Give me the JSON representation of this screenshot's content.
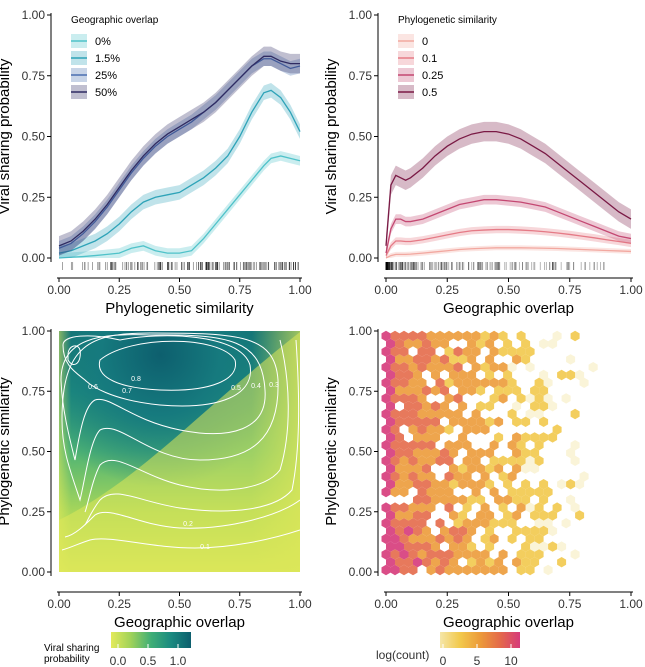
{
  "chart_data": [
    {
      "type": "line",
      "panel": "top-left",
      "xlabel": "Phylogenetic similarity",
      "ylabel": "Viral sharing probability",
      "xlim": [
        0,
        1
      ],
      "ylim": [
        0,
        1
      ],
      "xticks": [
        "0.00",
        "0.25",
        "0.50",
        "0.75",
        "1.00"
      ],
      "yticks": [
        "0.00",
        "0.25",
        "0.50",
        "0.75",
        "1.00"
      ],
      "legend_title": "Geographic overlap",
      "legend_position": "top-left",
      "rug": true,
      "x": [
        0,
        0.05,
        0.1,
        0.15,
        0.2,
        0.25,
        0.3,
        0.35,
        0.4,
        0.45,
        0.5,
        0.55,
        0.6,
        0.65,
        0.7,
        0.75,
        0.8,
        0.85,
        0.88,
        0.92,
        0.96,
        1.0
      ],
      "series": [
        {
          "name": "0%",
          "color": "#4fc2c9",
          "band": 0.02,
          "values": [
            0.0,
            0.003,
            0.006,
            0.01,
            0.015,
            0.02,
            0.04,
            0.05,
            0.03,
            0.02,
            0.02,
            0.03,
            0.08,
            0.14,
            0.2,
            0.26,
            0.32,
            0.38,
            0.41,
            0.42,
            0.41,
            0.4
          ]
        },
        {
          "name": "1.5%",
          "color": "#2ea3b8",
          "band": 0.03,
          "values": [
            0.02,
            0.03,
            0.05,
            0.07,
            0.1,
            0.14,
            0.19,
            0.23,
            0.25,
            0.26,
            0.27,
            0.3,
            0.33,
            0.37,
            0.42,
            0.5,
            0.6,
            0.68,
            0.69,
            0.66,
            0.6,
            0.52
          ]
        },
        {
          "name": "25%",
          "color": "#4a6fb0",
          "band": 0.03,
          "values": [
            0.04,
            0.06,
            0.1,
            0.15,
            0.21,
            0.28,
            0.35,
            0.41,
            0.46,
            0.5,
            0.53,
            0.56,
            0.6,
            0.64,
            0.69,
            0.74,
            0.79,
            0.82,
            0.82,
            0.8,
            0.78,
            0.79
          ]
        },
        {
          "name": "50%",
          "color": "#2f2b62",
          "band": 0.04,
          "values": [
            0.05,
            0.07,
            0.11,
            0.16,
            0.22,
            0.29,
            0.36,
            0.42,
            0.47,
            0.51,
            0.54,
            0.57,
            0.6,
            0.64,
            0.69,
            0.74,
            0.79,
            0.83,
            0.83,
            0.81,
            0.8,
            0.8
          ]
        }
      ]
    },
    {
      "type": "line",
      "panel": "top-right",
      "xlabel": "Geographic overlap",
      "ylabel": "Viral sharing probability",
      "xlim": [
        0,
        1
      ],
      "ylim": [
        0,
        1
      ],
      "xticks": [
        "0.00",
        "0.25",
        "0.50",
        "0.75",
        "1.00"
      ],
      "yticks": [
        "0.00",
        "0.25",
        "0.50",
        "0.75",
        "1.00"
      ],
      "legend_title": "Phylogenetic similarity",
      "legend_position": "top-left",
      "rug": true,
      "x": [
        0,
        0.02,
        0.04,
        0.06,
        0.08,
        0.1,
        0.15,
        0.2,
        0.25,
        0.3,
        0.35,
        0.4,
        0.45,
        0.5,
        0.55,
        0.6,
        0.65,
        0.7,
        0.75,
        0.8,
        0.85,
        0.9,
        0.95,
        1.0
      ],
      "series": [
        {
          "name": "0",
          "color": "#f2a8a0",
          "band": 0.01,
          "values": [
            0.0,
            0.01,
            0.015,
            0.015,
            0.015,
            0.016,
            0.02,
            0.025,
            0.03,
            0.035,
            0.038,
            0.04,
            0.042,
            0.042,
            0.042,
            0.041,
            0.04,
            0.039,
            0.037,
            0.035,
            0.033,
            0.031,
            0.029,
            0.027
          ]
        },
        {
          "name": "0.1",
          "color": "#e57a86",
          "band": 0.015,
          "values": [
            0.01,
            0.05,
            0.07,
            0.07,
            0.068,
            0.068,
            0.075,
            0.085,
            0.095,
            0.105,
            0.112,
            0.115,
            0.117,
            0.117,
            0.115,
            0.112,
            0.108,
            0.103,
            0.097,
            0.09,
            0.083,
            0.075,
            0.068,
            0.06
          ]
        },
        {
          "name": "0.25",
          "color": "#c44872",
          "band": 0.02,
          "values": [
            0.02,
            0.12,
            0.16,
            0.16,
            0.15,
            0.15,
            0.16,
            0.18,
            0.2,
            0.22,
            0.23,
            0.24,
            0.24,
            0.235,
            0.23,
            0.22,
            0.21,
            0.19,
            0.17,
            0.15,
            0.13,
            0.11,
            0.09,
            0.08
          ]
        },
        {
          "name": "0.5",
          "color": "#7a1a45",
          "band": 0.04,
          "values": [
            0.05,
            0.3,
            0.34,
            0.33,
            0.32,
            0.33,
            0.37,
            0.42,
            0.46,
            0.49,
            0.51,
            0.52,
            0.52,
            0.51,
            0.49,
            0.46,
            0.43,
            0.39,
            0.35,
            0.31,
            0.27,
            0.23,
            0.19,
            0.16
          ]
        }
      ]
    },
    {
      "type": "heatmap",
      "panel": "bottom-left",
      "xlabel": "Geographic overlap",
      "ylabel": "Phylogenetic similarity",
      "xlim": [
        0,
        1
      ],
      "ylim": [
        0,
        1
      ],
      "xticks": [
        "0.00",
        "0.25",
        "0.50",
        "0.75",
        "1.00"
      ],
      "yticks": [
        "0.00",
        "0.25",
        "0.50",
        "0.75",
        "1.00"
      ],
      "colorbar": {
        "title_line1": "Viral sharing",
        "title_line2": "probability",
        "ticks": [
          "0.0",
          "0.5",
          "1.0"
        ],
        "colors": [
          "#e3ea5a",
          "#9fd25a",
          "#3fae76",
          "#1a8a80",
          "#0d5f6e"
        ]
      },
      "contour_labels": [
        "0.8",
        "0.6",
        "0.7",
        "0.5",
        "0.4",
        "0.3",
        "0.2",
        "0.1"
      ]
    },
    {
      "type": "heatmap",
      "panel": "bottom-right",
      "subtype": "hexbin",
      "xlabel": "Geographic overlap",
      "ylabel": "Phylogenetic similarity",
      "xlim": [
        0,
        1
      ],
      "ylim": [
        0,
        1
      ],
      "xticks": [
        "0.00",
        "0.25",
        "0.50",
        "0.75",
        "1.00"
      ],
      "yticks": [
        "0.00",
        "0.25",
        "0.50",
        "0.75",
        "1.00"
      ],
      "colorbar": {
        "title": "log(count)",
        "ticks": [
          "0",
          "5",
          "10"
        ],
        "colors": [
          "#f5e6a8",
          "#f2c94c",
          "#ec9b3a",
          "#e46a4a",
          "#d63a7a"
        ]
      }
    }
  ]
}
